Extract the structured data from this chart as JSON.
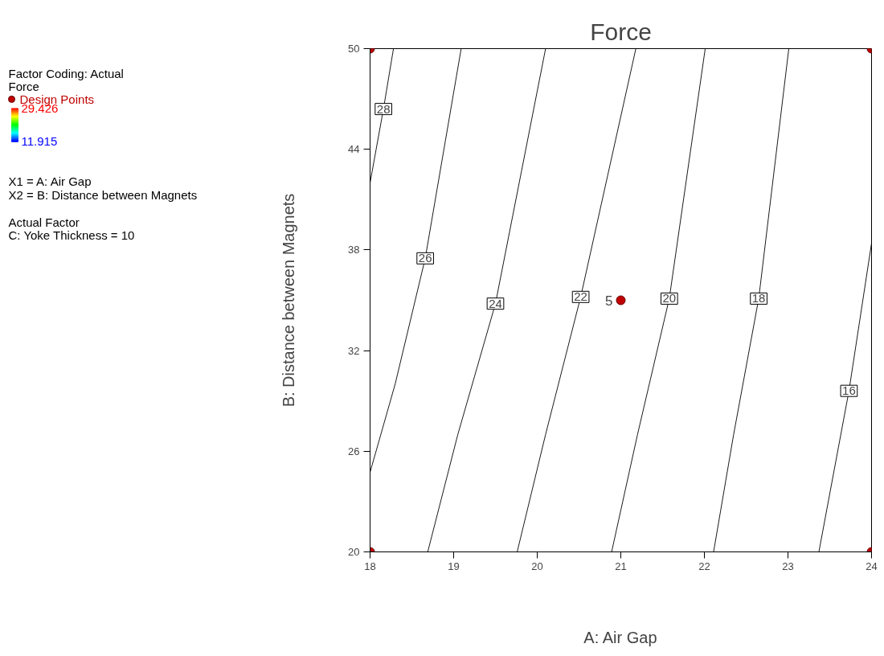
{
  "chart_data": {
    "type": "line",
    "title": "Force",
    "xlabel": "A: Air Gap",
    "ylabel": "B: Distance between Magnets",
    "xlim": [
      18,
      24
    ],
    "ylim": [
      20,
      50
    ],
    "xticks": [
      18,
      19,
      20,
      21,
      22,
      23,
      24
    ],
    "yticks": [
      20,
      26,
      32,
      38,
      44,
      50
    ],
    "grid": false,
    "legend": "left",
    "clim": [
      11.915,
      29.426
    ],
    "cticks": [
      29.426,
      11.915
    ],
    "series": [
      {
        "color": "#000000",
        "x": [
          18,
          18.16,
          18.28
        ],
        "values": [
          42.0,
          46.4,
          50
        ]
      },
      {
        "color": "#000000",
        "x": [
          18,
          18.3,
          18.66,
          19.09
        ],
        "values": [
          24.75,
          30,
          37.5,
          50
        ]
      },
      {
        "color": "#000000",
        "x": [
          18.69,
          19.05,
          19.5,
          20.1
        ],
        "values": [
          20,
          27,
          34.8,
          50
        ]
      },
      {
        "color": "#000000",
        "x": [
          19.76,
          20.1,
          20.52,
          21.18
        ],
        "values": [
          20,
          27,
          35.2,
          50
        ]
      },
      {
        "color": "#000000",
        "x": [
          20.89,
          21.2,
          21.58,
          22.01
        ],
        "values": [
          20,
          27,
          35.1,
          50
        ]
      },
      {
        "color": "#000000",
        "x": [
          22.11,
          22.35,
          22.65,
          23.01
        ],
        "values": [
          20,
          27,
          35.1,
          50
        ]
      },
      {
        "color": "#000000",
        "x": [
          23.37,
          23.73,
          24
        ],
        "values": [
          20,
          29.6,
          38.4
        ]
      },
      {
        "type": "scatter",
        "name": "Design Points",
        "color": "#c00000",
        "marker": "circle",
        "x": [
          18,
          24,
          18,
          24,
          21
        ],
        "values": [
          50,
          50,
          20,
          20,
          35
        ]
      }
    ],
    "annotations": [
      "Factor Coding: Actual",
      "Force",
      "X1 = A: Air Gap",
      "X2 = B: Distance between Magnets",
      "Actual Factor",
      "C: Yoke Thickness = 10",
      {
        "text": "28",
        "x": 18.16,
        "y": 46.4
      },
      {
        "text": "26",
        "x": 18.66,
        "y": 37.5
      },
      {
        "text": "24",
        "x": 19.5,
        "y": 34.8
      },
      {
        "text": "22",
        "x": 20.52,
        "y": 35.2
      },
      {
        "text": "20",
        "x": 21.58,
        "y": 35.1
      },
      {
        "text": "18",
        "x": 22.65,
        "y": 35.1
      },
      {
        "text": "16",
        "x": 23.73,
        "y": 29.6
      },
      {
        "text": "5",
        "x": 21,
        "y": 35
      }
    ]
  }
}
